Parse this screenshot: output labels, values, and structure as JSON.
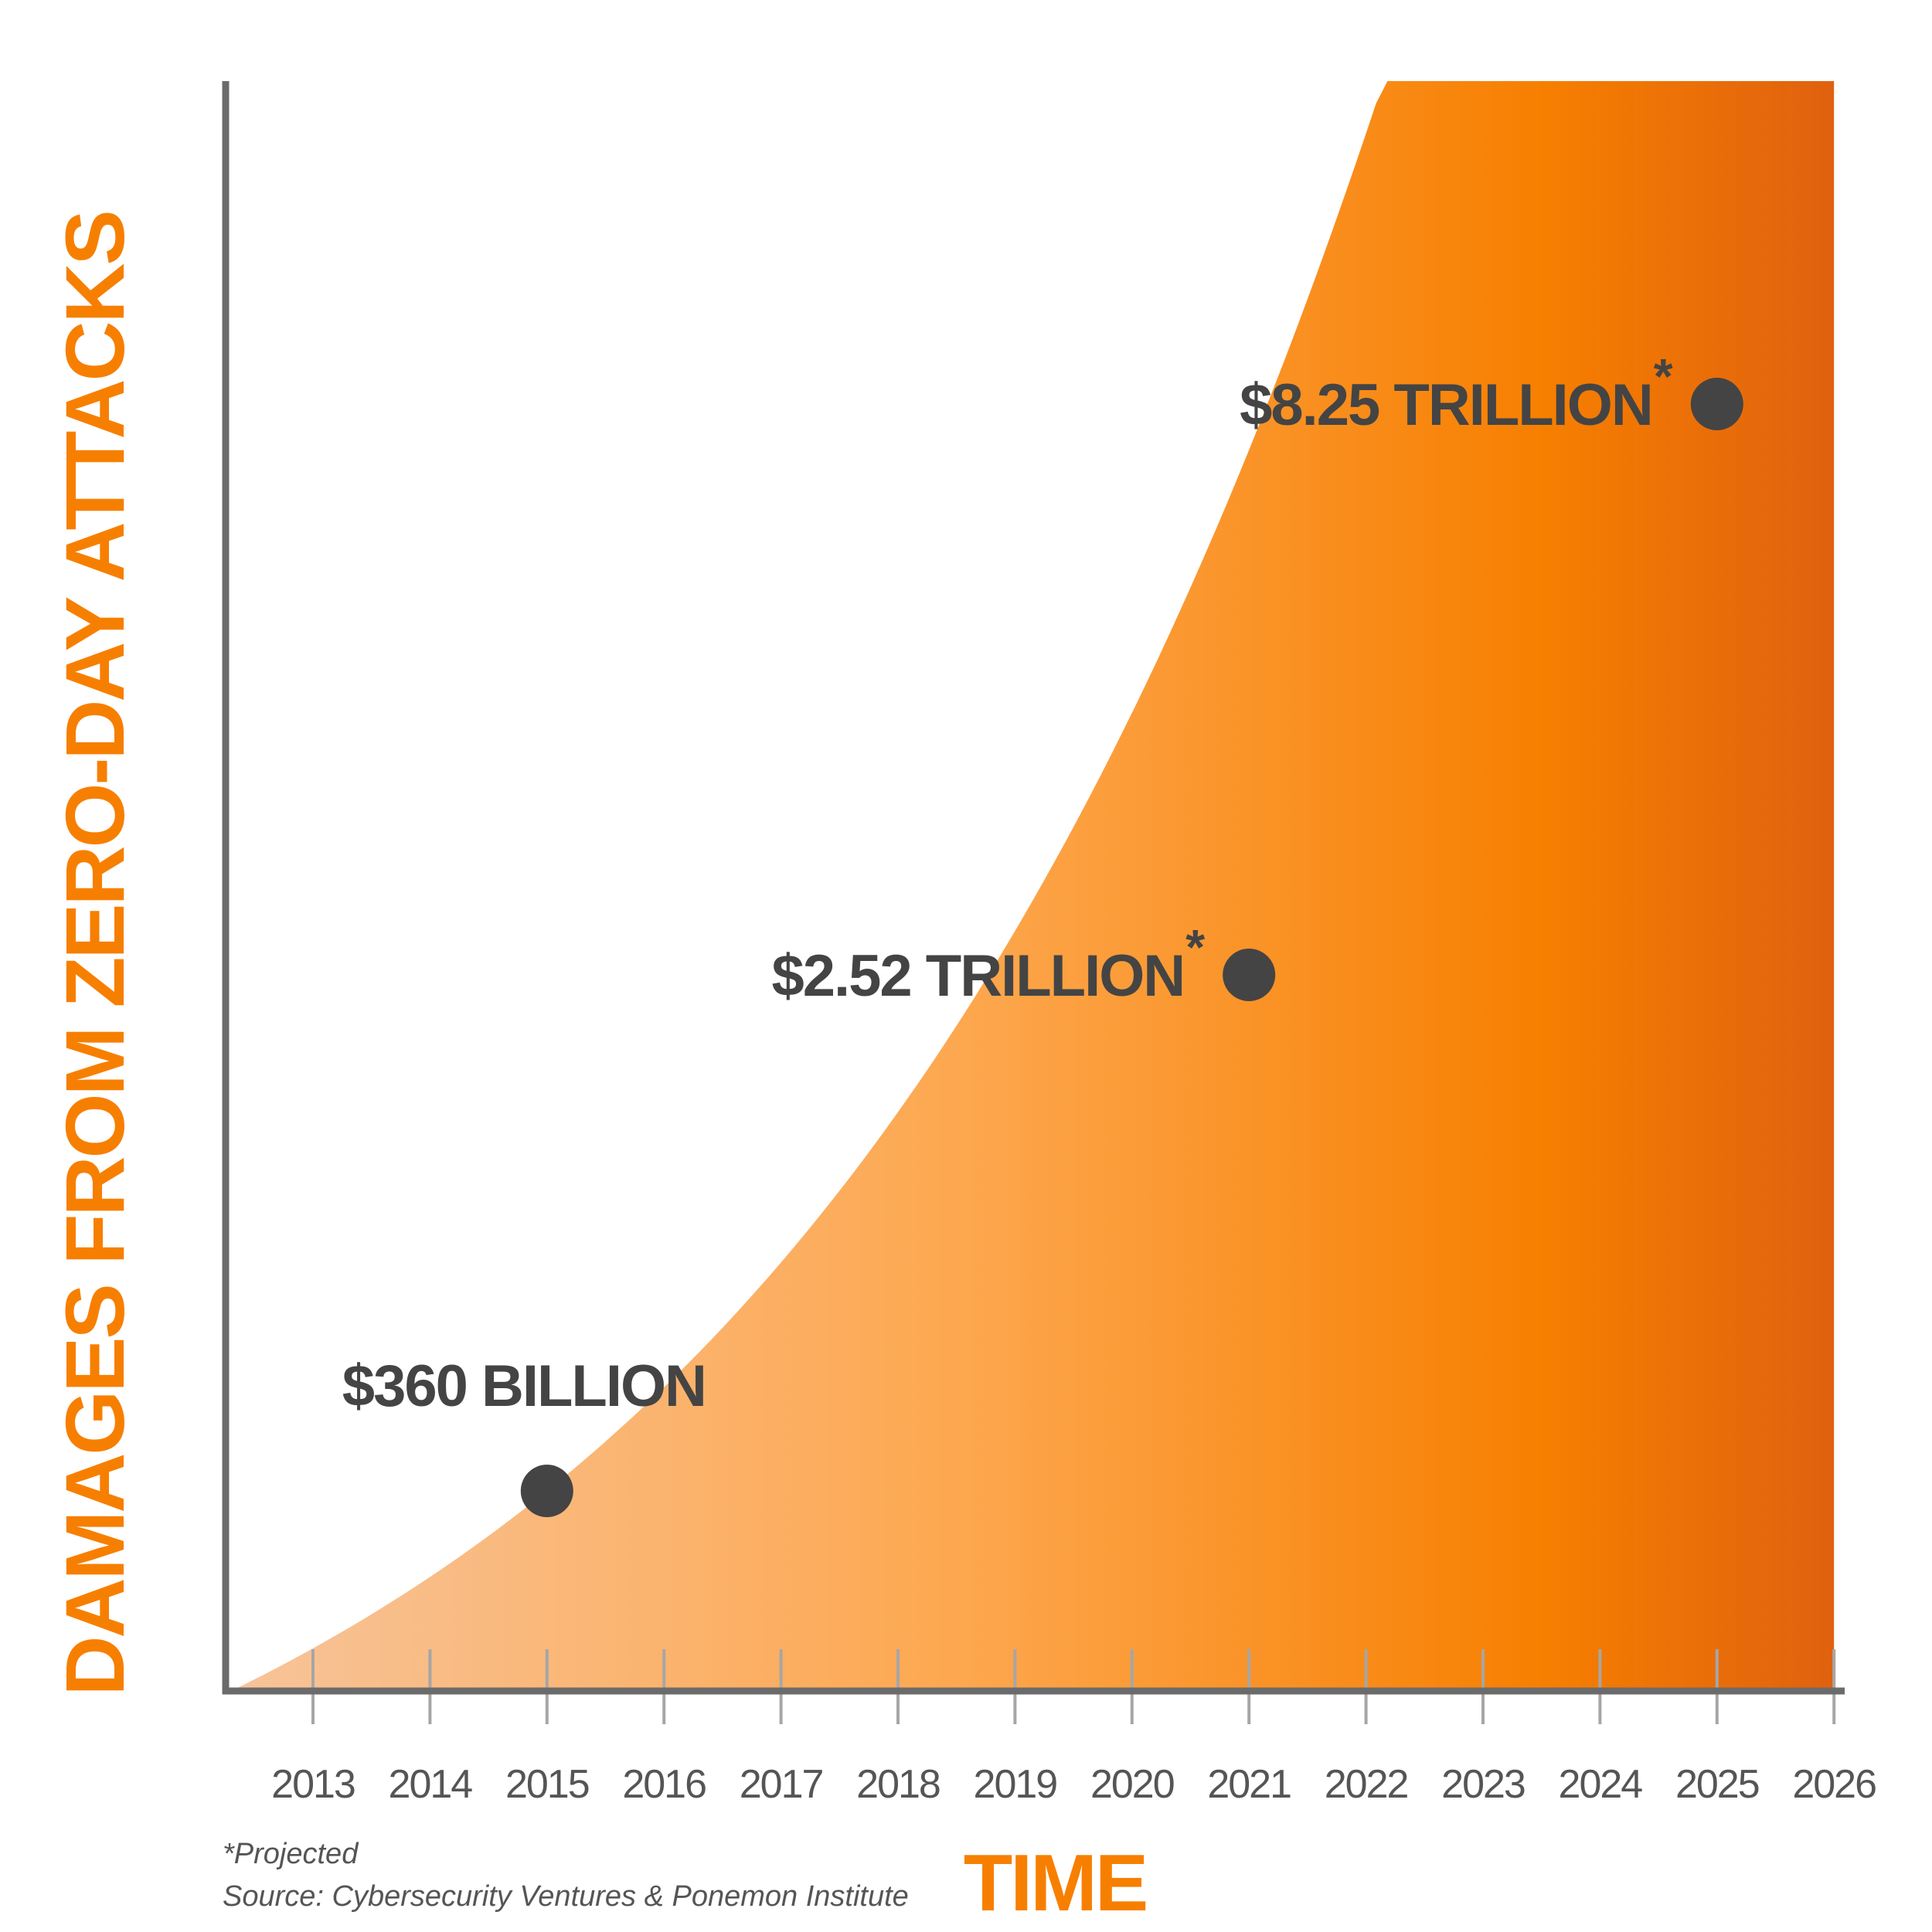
{
  "chart_data": {
    "type": "area",
    "title": "",
    "xlabel": "TIME",
    "ylabel": "DAMAGES FROM ZERO-DAY ATTACKS",
    "x_ticks": [
      "2013",
      "2014",
      "2015",
      "2016",
      "2017",
      "2018",
      "2019",
      "2020",
      "2021",
      "2022",
      "2023",
      "2024",
      "2025",
      "2026"
    ],
    "x_range": [
      2012.3,
      2026
    ],
    "y_unit": "trillion USD",
    "y_tick_labels": false,
    "curve": "exponential",
    "points": [
      {
        "x": 2015,
        "y": 0.36,
        "label": "$360 BILLION",
        "projected": false
      },
      {
        "x": 2021,
        "y": 2.52,
        "label": "$2.52 TRILLION",
        "projected": true
      },
      {
        "x": 2025,
        "y": 8.25,
        "label": "$8.25 TRILLION",
        "projected": true
      }
    ],
    "projected_marker": "*",
    "gradient_colors": [
      "#F7C49A",
      "#FDA850",
      "#F77F00",
      "#E0610F"
    ]
  },
  "footnote": {
    "projected": "*Projected",
    "source": "Source: Cybersecurity Ventures & Ponemon Institute"
  },
  "colors": {
    "accent": "#F77F00",
    "axis": "#6B6B6B",
    "tick": "#A6A6A6",
    "marker": "#444444",
    "text": "#555555"
  }
}
